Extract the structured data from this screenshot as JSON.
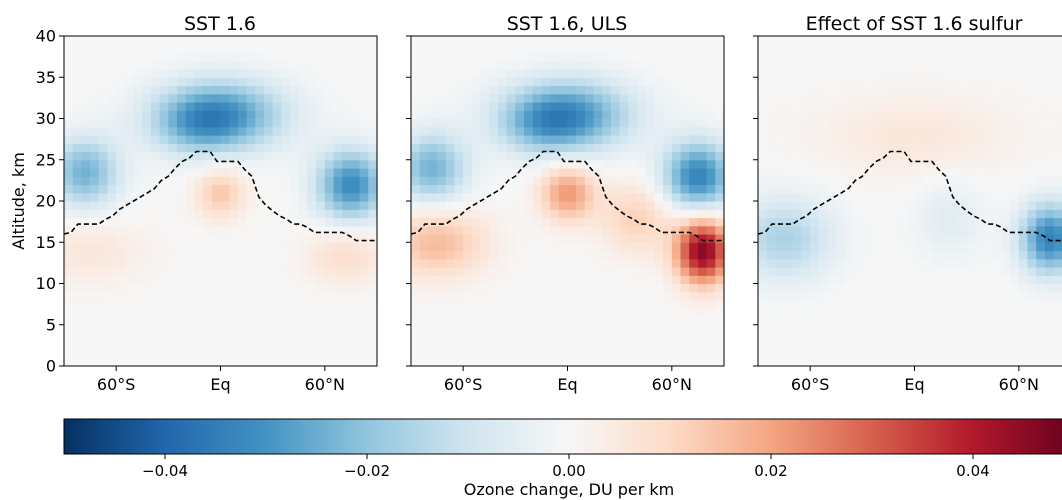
{
  "chart_data": {
    "type": "heatmap",
    "ylabel": "Altitude, km",
    "ylim": [
      0,
      40
    ],
    "y_ticks": [
      "0",
      "5",
      "10",
      "15",
      "20",
      "25",
      "30",
      "35",
      "40"
    ],
    "y_tick_values": [
      0,
      5,
      10,
      15,
      20,
      25,
      30,
      35,
      40
    ],
    "x_range": [
      -90,
      90
    ],
    "x_ticks": [
      "60$^\\circ$S",
      "Eq",
      "60$^\\circ$N"
    ],
    "x_tick_labels": [
      "60°S",
      "Eq",
      "60°N"
    ],
    "x_tick_values": [
      -60,
      0,
      60
    ],
    "colorbar": {
      "label": "Ozone change, DU per km",
      "range": [
        -0.05,
        0.05
      ],
      "ticks": [
        -0.04,
        -0.02,
        0.0,
        0.02,
        0.04
      ],
      "tick_labels": [
        "−0.04",
        "−0.02",
        "0.00",
        "0.02",
        "0.04"
      ],
      "colormap": "RdBu_r"
    },
    "tropopause": {
      "style": "dashed black",
      "lat": [
        -90,
        -86,
        -82,
        -78,
        -74,
        -70,
        -66,
        -62,
        -58,
        -54,
        -50,
        -46,
        -42,
        -38,
        -34,
        -30,
        -26,
        -22,
        -18,
        -14,
        -10,
        -6,
        -2,
        2,
        6,
        10,
        14,
        18,
        22,
        26,
        30,
        34,
        38,
        42,
        46,
        50,
        54,
        58,
        62,
        66,
        70,
        74,
        78,
        82,
        86,
        90
      ],
      "alt_km": [
        16.0,
        16.2,
        17.2,
        17.2,
        17.2,
        17.2,
        17.8,
        18.2,
        19.0,
        19.5,
        20.0,
        20.5,
        21.0,
        21.5,
        22.5,
        23.0,
        24.0,
        24.8,
        25.2,
        26.0,
        26.0,
        26.0,
        24.8,
        24.8,
        24.8,
        24.8,
        23.8,
        23.0,
        20.5,
        19.5,
        18.8,
        18.2,
        17.8,
        17.2,
        17.2,
        16.8,
        16.2,
        16.2,
        16.2,
        16.2,
        16.2,
        15.8,
        15.2,
        15.2,
        15.2,
        15.2
      ]
    },
    "panels": [
      {
        "title": "SST 1.6",
        "features": [
          {
            "kind": "gaussian",
            "lat": 0,
            "alt_km": 30.5,
            "sigma_lat": 26,
            "sigma_alt": 3.0,
            "value": -0.03
          },
          {
            "kind": "gaussian",
            "lat": -15,
            "alt_km": 29.0,
            "sigma_lat": 18,
            "sigma_alt": 2.5,
            "value": -0.01
          },
          {
            "kind": "gaussian",
            "lat": 75,
            "alt_km": 22.0,
            "sigma_lat": 14,
            "sigma_alt": 3.0,
            "value": -0.032
          },
          {
            "kind": "gaussian",
            "lat": -78,
            "alt_km": 23.5,
            "sigma_lat": 14,
            "sigma_alt": 3.0,
            "value": -0.024
          },
          {
            "kind": "gaussian",
            "lat": 0,
            "alt_km": 21.0,
            "sigma_lat": 10,
            "sigma_alt": 2.2,
            "value": 0.014
          },
          {
            "kind": "gaussian",
            "lat": 72,
            "alt_km": 13.5,
            "sigma_lat": 16,
            "sigma_alt": 2.5,
            "value": 0.009
          },
          {
            "kind": "gaussian",
            "lat": -75,
            "alt_km": 14.0,
            "sigma_lat": 22,
            "sigma_alt": 3.0,
            "value": 0.006
          }
        ]
      },
      {
        "title": "SST 1.6, ULS",
        "features": [
          {
            "kind": "gaussian",
            "lat": 0,
            "alt_km": 30.5,
            "sigma_lat": 26,
            "sigma_alt": 3.0,
            "value": -0.03
          },
          {
            "kind": "gaussian",
            "lat": -15,
            "alt_km": 29.0,
            "sigma_lat": 18,
            "sigma_alt": 2.5,
            "value": -0.01
          },
          {
            "kind": "gaussian",
            "lat": 75,
            "alt_km": 23.0,
            "sigma_lat": 14,
            "sigma_alt": 3.0,
            "value": -0.034
          },
          {
            "kind": "gaussian",
            "lat": -78,
            "alt_km": 24.0,
            "sigma_lat": 14,
            "sigma_alt": 3.0,
            "value": -0.024
          },
          {
            "kind": "gaussian",
            "lat": 0,
            "alt_km": 21.0,
            "sigma_lat": 11,
            "sigma_alt": 2.4,
            "value": 0.022
          },
          {
            "kind": "gaussian",
            "lat": 78,
            "alt_km": 14.0,
            "sigma_lat": 11,
            "sigma_alt": 2.8,
            "value": 0.046
          },
          {
            "kind": "gaussian",
            "lat": -75,
            "alt_km": 15.0,
            "sigma_lat": 20,
            "sigma_alt": 3.0,
            "value": 0.016
          },
          {
            "kind": "gaussian",
            "lat": 40,
            "alt_km": 18.0,
            "sigma_lat": 15,
            "sigma_alt": 3.0,
            "value": 0.012
          }
        ]
      },
      {
        "title": "Effect of SST 1.6 sulfur",
        "features": [
          {
            "kind": "gaussian",
            "lat": 0,
            "alt_km": 28.0,
            "sigma_lat": 40,
            "sigma_alt": 3.5,
            "value": 0.006
          },
          {
            "kind": "gaussian",
            "lat": 78,
            "alt_km": 15.5,
            "sigma_lat": 12,
            "sigma_alt": 3.0,
            "value": -0.034
          },
          {
            "kind": "gaussian",
            "lat": -75,
            "alt_km": 15.5,
            "sigma_lat": 20,
            "sigma_alt": 3.5,
            "value": -0.016
          },
          {
            "kind": "gaussian",
            "lat": 20,
            "alt_km": 18.0,
            "sigma_lat": 14,
            "sigma_alt": 3.5,
            "value": -0.006
          }
        ]
      }
    ]
  }
}
